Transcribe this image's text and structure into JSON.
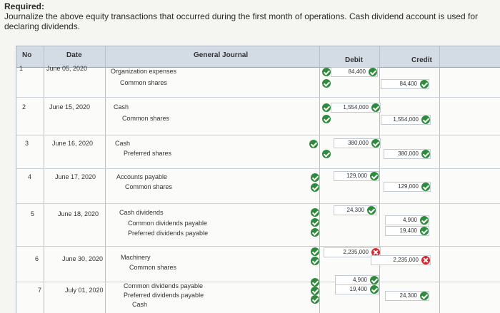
{
  "required": {
    "heading": "Required:",
    "instruction": "Journalize the above equity transactions that occurred during the first month of operations. Cash dividend account is used for declaring dividends."
  },
  "table": {
    "headers": {
      "no": "No",
      "date": "Date",
      "journal": "General Journal",
      "debit": "Debit",
      "credit": "Credit"
    },
    "entries": [
      {
        "no": "1",
        "date": "June 05, 2020",
        "lines": [
          "Organization expenses",
          "Common shares"
        ],
        "debit": [
          "84,400"
        ],
        "credit": [
          "84,400"
        ]
      },
      {
        "no": "2",
        "date": "June 15, 2020",
        "lines": [
          "Cash",
          "Common shares"
        ],
        "debit": [
          "1,554,000"
        ],
        "credit": [
          "1,554,000"
        ]
      },
      {
        "no": "3",
        "date": "June 16, 2020",
        "lines": [
          "Cash",
          "Preferred shares"
        ],
        "debit": [
          "380,000"
        ],
        "credit": [
          "380,000"
        ]
      },
      {
        "no": "4",
        "date": "June 17, 2020",
        "lines": [
          "Accounts payable",
          "Common shares"
        ],
        "debit": [
          "129,000"
        ],
        "credit": [
          "129,000"
        ]
      },
      {
        "no": "5",
        "date": "June 18, 2020",
        "lines": [
          "Cash dividends",
          "Common dividends payable",
          "Preferred dividends payable"
        ],
        "debit": [
          "24,300"
        ],
        "credit": [
          "4,900",
          "19,400"
        ]
      },
      {
        "no": "6",
        "date": "June 30, 2020",
        "lines": [
          "Machinery",
          "Common shares"
        ],
        "debit": [
          "2,235,000"
        ],
        "credit": [
          "2,235,000"
        ]
      },
      {
        "no": "7",
        "date": "July 01, 2020",
        "lines": [
          "Common dividends payable",
          "Preferred dividends payable",
          "Cash"
        ],
        "debit": [
          "4,900",
          "19,400"
        ],
        "credit": [
          "24,300"
        ]
      }
    ]
  },
  "colors": {
    "check": "#2e8b3c",
    "error": "#d7262d",
    "header_bg": "#d3dbe4"
  }
}
